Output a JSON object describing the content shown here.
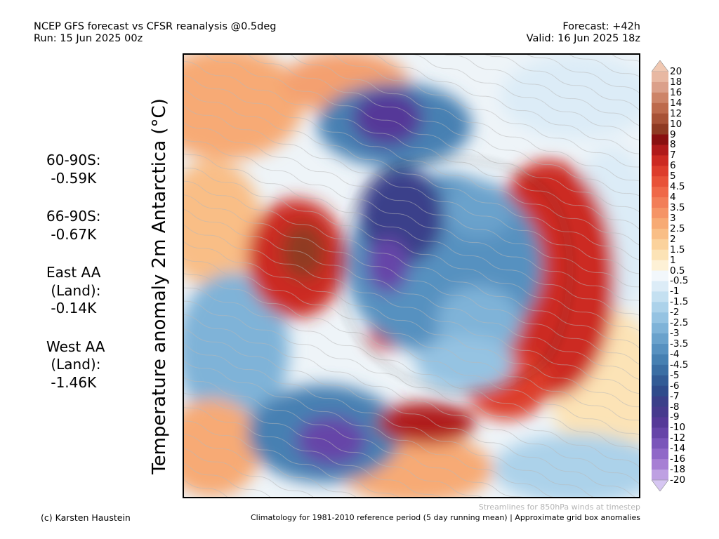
{
  "header": {
    "title": "NCEP GFS forecast vs CFSR reanalysis @0.5deg",
    "run": "Run: 15 Jun 2025 00z",
    "forecast": "Forecast: +42h",
    "valid": "Valid: 16 Jun 2025 18z"
  },
  "stats": [
    {
      "lines": [
        "60-90S:",
        " -0.59K"
      ]
    },
    {
      "lines": [
        "66-90S:",
        " -0.67K"
      ]
    },
    {
      "lines": [
        "East AA",
        " (Land):",
        " -0.14K"
      ]
    },
    {
      "lines": [
        "West AA",
        " (Land):",
        " -1.46K"
      ]
    }
  ],
  "ylabel": "Temperature anomaly 2m Antarctica (°C)",
  "colorbar": {
    "labels": [
      "20",
      "18",
      "16",
      "14",
      "12",
      "10",
      "9",
      "8",
      "7",
      "6",
      "5",
      "4.5",
      "4",
      "3.5",
      "3",
      "2.5",
      "2",
      "1.5",
      "1",
      "0.5",
      "-0.5",
      "-1",
      "-1.5",
      "-2",
      "-2.5",
      "-3",
      "-3.5",
      "-4",
      "-4.5",
      "-5",
      "-6",
      "-7",
      "-8",
      "-9",
      "-10",
      "-12",
      "-14",
      "-16",
      "-18",
      "-20"
    ],
    "colors": [
      "#e8b8a2",
      "#dba08a",
      "#cd8468",
      "#bd6a4c",
      "#a85236",
      "#8f3a22",
      "#8a1010",
      "#b01a1a",
      "#cc2a22",
      "#dd3d2c",
      "#e85238",
      "#ef6848",
      "#f27e58",
      "#f59466",
      "#f7aa74",
      "#f9be86",
      "#fbd29c",
      "#fce3b6",
      "#fdf1d6",
      "#f2f7fb",
      "#dcecf7",
      "#c4e0f1",
      "#acd2ea",
      "#95c3e2",
      "#7fb3d8",
      "#6aa2cc",
      "#5791c0",
      "#4680b2",
      "#3a6ea4",
      "#325b96",
      "#2f4b8c",
      "#3a3f8a",
      "#463a8e",
      "#553998",
      "#6644a8",
      "#7a55ba",
      "#9068c8",
      "#a77fd4",
      "#bea0e2"
    ],
    "top_tip": "#f0c8b2",
    "bottom_tip": "#d6c6f2"
  },
  "footer": {
    "credit": "(c) Karsten Haustein",
    "streamlines": "Streamlines for 850hPa winds at timestep",
    "climatology": "Climatology for 1981-2010 reference period (5 day running mean) | Approximate grid box anomalies"
  }
}
